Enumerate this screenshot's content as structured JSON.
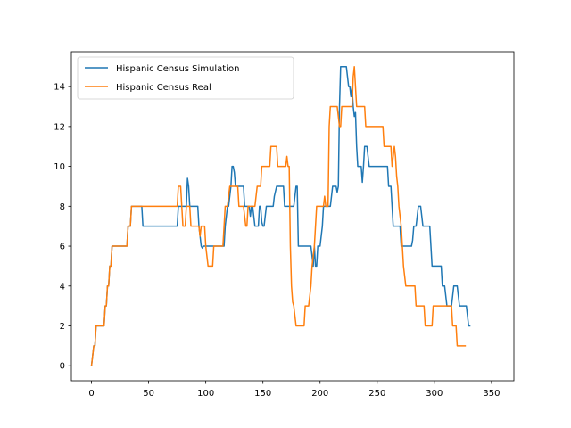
{
  "chart_data": {
    "type": "line",
    "title": "",
    "xlabel": "",
    "ylabel": "",
    "xlim": [
      -17.6,
      369.6
    ],
    "ylim": [
      -0.75,
      15.75
    ],
    "xticks": [
      0,
      50,
      100,
      150,
      200,
      250,
      300,
      350
    ],
    "yticks": [
      0,
      2,
      4,
      6,
      8,
      10,
      12,
      14
    ],
    "legend": {
      "position": "top-left"
    },
    "grid": false,
    "series": [
      {
        "name": "Hispanic Census Simulation",
        "color": "#1f77b4",
        "points": [
          [
            0,
            0
          ],
          [
            2,
            1
          ],
          [
            3,
            1
          ],
          [
            4,
            2
          ],
          [
            11,
            2
          ],
          [
            12,
            3
          ],
          [
            13,
            3
          ],
          [
            14,
            4
          ],
          [
            15,
            4
          ],
          [
            16,
            5
          ],
          [
            17,
            5
          ],
          [
            18,
            6
          ],
          [
            31,
            6
          ],
          [
            32,
            7
          ],
          [
            34,
            7
          ],
          [
            35,
            8
          ],
          [
            44,
            8
          ],
          [
            45,
            7
          ],
          [
            75,
            7
          ],
          [
            76,
            8
          ],
          [
            83,
            8
          ],
          [
            84,
            9.4
          ],
          [
            85,
            9
          ],
          [
            86,
            8
          ],
          [
            93,
            8
          ],
          [
            94,
            7
          ],
          [
            95,
            6.5
          ],
          [
            96,
            6
          ],
          [
            97,
            5.9
          ],
          [
            98,
            6
          ],
          [
            101,
            6
          ],
          [
            112,
            6
          ],
          [
            116,
            6
          ],
          [
            117,
            7
          ],
          [
            119,
            8
          ],
          [
            120,
            8
          ],
          [
            122,
            9
          ],
          [
            123,
            10
          ],
          [
            124,
            10
          ],
          [
            125,
            9.7
          ],
          [
            126,
            9
          ],
          [
            133,
            9
          ],
          [
            134,
            8
          ],
          [
            138,
            8
          ],
          [
            139,
            7.5
          ],
          [
            140,
            8
          ],
          [
            141,
            8
          ],
          [
            142,
            7.5
          ],
          [
            143,
            7
          ],
          [
            146,
            7
          ],
          [
            147,
            8
          ],
          [
            148,
            8
          ],
          [
            149,
            7.2
          ],
          [
            150,
            7
          ],
          [
            151,
            7
          ],
          [
            152,
            7.5
          ],
          [
            153,
            8
          ],
          [
            159,
            8
          ],
          [
            160,
            8.5
          ],
          [
            162,
            9
          ],
          [
            168,
            9
          ],
          [
            169,
            8
          ],
          [
            177,
            8
          ],
          [
            178,
            8.5
          ],
          [
            179,
            9
          ],
          [
            180,
            9
          ],
          [
            181,
            6
          ],
          [
            192,
            6
          ],
          [
            194,
            5
          ],
          [
            195,
            6
          ],
          [
            196,
            5
          ],
          [
            197,
            5
          ],
          [
            198,
            6
          ],
          [
            199,
            6
          ],
          [
            200,
            6
          ],
          [
            201,
            6.5
          ],
          [
            202,
            7
          ],
          [
            203,
            8
          ],
          [
            209,
            8
          ],
          [
            210,
            8.5
          ],
          [
            211,
            9
          ],
          [
            212,
            9
          ],
          [
            214,
            9
          ],
          [
            215,
            8.7
          ],
          [
            216,
            9
          ],
          [
            217,
            13
          ],
          [
            218,
            15
          ],
          [
            223,
            15
          ],
          [
            225,
            14
          ],
          [
            226,
            14
          ],
          [
            227,
            13.5
          ],
          [
            228,
            14
          ],
          [
            229,
            13
          ],
          [
            230,
            12.5
          ],
          [
            231,
            12.7
          ],
          [
            232,
            11
          ],
          [
            233,
            10
          ],
          [
            236,
            10
          ],
          [
            237,
            9.2
          ],
          [
            238,
            10
          ],
          [
            239,
            11
          ],
          [
            241,
            11
          ],
          [
            242,
            10.5
          ],
          [
            243,
            10
          ],
          [
            259,
            10
          ],
          [
            260,
            9
          ],
          [
            262,
            9
          ],
          [
            263,
            8
          ],
          [
            264,
            7
          ],
          [
            270,
            7
          ],
          [
            271,
            6
          ],
          [
            274,
            6
          ],
          [
            280,
            6
          ],
          [
            281,
            6.3
          ],
          [
            282,
            7
          ],
          [
            284,
            7
          ],
          [
            285,
            7.5
          ],
          [
            286,
            8
          ],
          [
            288,
            8
          ],
          [
            289,
            7.5
          ],
          [
            290,
            7
          ],
          [
            296,
            7
          ],
          [
            297,
            6
          ],
          [
            298,
            5
          ],
          [
            306,
            5
          ],
          [
            307,
            4
          ],
          [
            309,
            4
          ],
          [
            310,
            3.5
          ],
          [
            311,
            3
          ],
          [
            315,
            3
          ],
          [
            316,
            3.5
          ],
          [
            317,
            4
          ],
          [
            320,
            4
          ],
          [
            321,
            3.5
          ],
          [
            322,
            3
          ],
          [
            326,
            3
          ],
          [
            327,
            3
          ],
          [
            328,
            3
          ],
          [
            329,
            2.5
          ],
          [
            330,
            2
          ],
          [
            331,
            2
          ]
        ]
      },
      {
        "name": "Hispanic Census Real",
        "color": "#ff7f0e",
        "points": [
          [
            0,
            0
          ],
          [
            2,
            1
          ],
          [
            3,
            1
          ],
          [
            4,
            2
          ],
          [
            11,
            2
          ],
          [
            12,
            3
          ],
          [
            13,
            3
          ],
          [
            14,
            4
          ],
          [
            15,
            4
          ],
          [
            16,
            5
          ],
          [
            17,
            5
          ],
          [
            18,
            6
          ],
          [
            31,
            6
          ],
          [
            32,
            7
          ],
          [
            34,
            7
          ],
          [
            35,
            8
          ],
          [
            75,
            8
          ],
          [
            76,
            9
          ],
          [
            78,
            9
          ],
          [
            79,
            8
          ],
          [
            80,
            7
          ],
          [
            82,
            7
          ],
          [
            83,
            8
          ],
          [
            86,
            8
          ],
          [
            87,
            7
          ],
          [
            94,
            7
          ],
          [
            95,
            6.5
          ],
          [
            96,
            7
          ],
          [
            99,
            7
          ],
          [
            100,
            6
          ],
          [
            101,
            5.5
          ],
          [
            102,
            5
          ],
          [
            106,
            5
          ],
          [
            107,
            6
          ],
          [
            110,
            6
          ],
          [
            115,
            6
          ],
          [
            116,
            7
          ],
          [
            117,
            8
          ],
          [
            119,
            8
          ],
          [
            120,
            8.5
          ],
          [
            121,
            9
          ],
          [
            128,
            9
          ],
          [
            129,
            8
          ],
          [
            133,
            8
          ],
          [
            134,
            7.5
          ],
          [
            135,
            7
          ],
          [
            136,
            7
          ],
          [
            137,
            8
          ],
          [
            143,
            8
          ],
          [
            144,
            8.5
          ],
          [
            145,
            9
          ],
          [
            148,
            9
          ],
          [
            149,
            10
          ],
          [
            156,
            10
          ],
          [
            157,
            11
          ],
          [
            162,
            11
          ],
          [
            163,
            10
          ],
          [
            170,
            10
          ],
          [
            171,
            10.5
          ],
          [
            172,
            10
          ],
          [
            173,
            10
          ],
          [
            174,
            6
          ],
          [
            175,
            4
          ],
          [
            176,
            3.2
          ],
          [
            177,
            3
          ],
          [
            178,
            2.5
          ],
          [
            179,
            2
          ],
          [
            186,
            2
          ],
          [
            187,
            3
          ],
          [
            190,
            3
          ],
          [
            191,
            3.5
          ],
          [
            192,
            4
          ],
          [
            193,
            5
          ],
          [
            195,
            6
          ],
          [
            196,
            7
          ],
          [
            197,
            8
          ],
          [
            203,
            8
          ],
          [
            204,
            8.5
          ],
          [
            205,
            8
          ],
          [
            207,
            8
          ],
          [
            208,
            12
          ],
          [
            209,
            13
          ],
          [
            215,
            13
          ],
          [
            216,
            12.5
          ],
          [
            217,
            12
          ],
          [
            218,
            12
          ],
          [
            219,
            13
          ],
          [
            228,
            13
          ],
          [
            229,
            14.5
          ],
          [
            230,
            15
          ],
          [
            231,
            14
          ],
          [
            232,
            13
          ],
          [
            239,
            13
          ],
          [
            240,
            12
          ],
          [
            255,
            12
          ],
          [
            256,
            11
          ],
          [
            262,
            11
          ],
          [
            263,
            10
          ],
          [
            264,
            10.5
          ],
          [
            265,
            11
          ],
          [
            266,
            10.5
          ],
          [
            267,
            9.5
          ],
          [
            268,
            9
          ],
          [
            269,
            8
          ],
          [
            271,
            7
          ],
          [
            272,
            6
          ],
          [
            273,
            5
          ],
          [
            274,
            4.5
          ],
          [
            275,
            4
          ],
          [
            283,
            4
          ],
          [
            284,
            3
          ],
          [
            291,
            3
          ],
          [
            292,
            2
          ],
          [
            298,
            2
          ],
          [
            299,
            3
          ],
          [
            315,
            3
          ],
          [
            316,
            2
          ],
          [
            319,
            2
          ],
          [
            320,
            1
          ],
          [
            327,
            1
          ]
        ]
      }
    ]
  }
}
